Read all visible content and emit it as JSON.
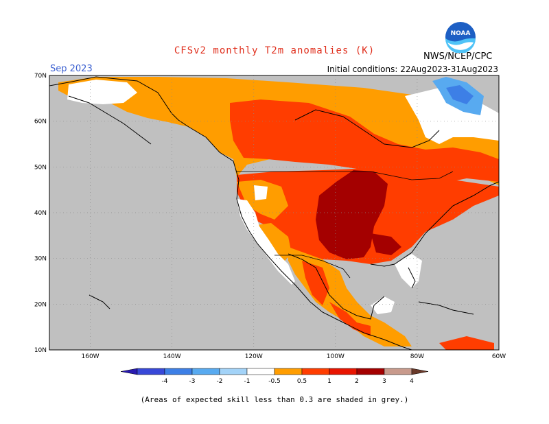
{
  "header": {
    "title": "CFSv2 monthly T2m anomalies (K)",
    "agency": "NWS/NCEP/CPC",
    "logo_text": "NOAA",
    "period": "Sep 2023",
    "initial_conditions": "Initial conditions: 22Aug2023-31Aug2023"
  },
  "map": {
    "lat_labels": [
      "70N",
      "60N",
      "50N",
      "40N",
      "30N",
      "20N",
      "10N"
    ],
    "lon_labels": [
      "160W",
      "140W",
      "120W",
      "100W",
      "80W",
      "60W"
    ],
    "lat_range": [
      10,
      70
    ],
    "lon_range": [
      -170,
      -60
    ],
    "gridlines": "dotted"
  },
  "legend": {
    "labels": [
      "-4",
      "-3",
      "-2",
      "-1",
      "-0.5",
      "0.5",
      "1",
      "2",
      "3",
      "4"
    ],
    "colors": [
      "#2a1bb0",
      "#3848d8",
      "#3d7fe6",
      "#58aaf0",
      "#a3d3f8",
      "#ffffff",
      "#ff9d00",
      "#ff3d00",
      "#e81400",
      "#a40000",
      "#c89a8c",
      "#6a3a2a"
    ]
  },
  "footer": {
    "note": "(Areas of expected skill less than 0.3 are shaded in grey.)"
  },
  "colors": {
    "grey": "#c0c0c0",
    "white": "#ffffff",
    "orange": "#ff9d00",
    "red": "#ff3d00",
    "darkred": "#a40000",
    "lightblue": "#58aaf0",
    "title": "#e0301e"
  }
}
